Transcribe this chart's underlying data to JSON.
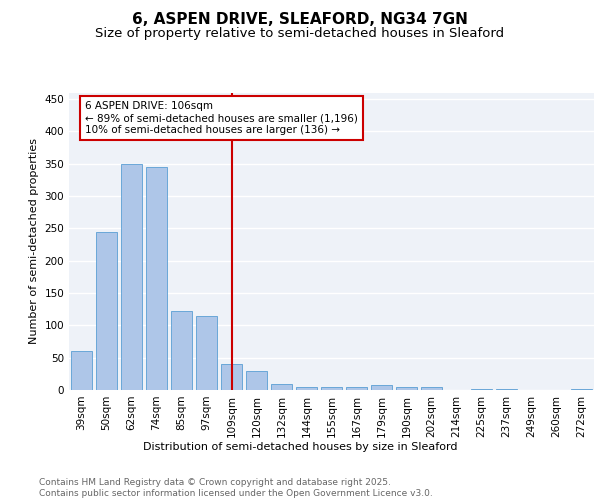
{
  "title_line1": "6, ASPEN DRIVE, SLEAFORD, NG34 7GN",
  "title_line2": "Size of property relative to semi-detached houses in Sleaford",
  "xlabel": "Distribution of semi-detached houses by size in Sleaford",
  "ylabel": "Number of semi-detached properties",
  "categories": [
    "39sqm",
    "50sqm",
    "62sqm",
    "74sqm",
    "85sqm",
    "97sqm",
    "109sqm",
    "120sqm",
    "132sqm",
    "144sqm",
    "155sqm",
    "167sqm",
    "179sqm",
    "190sqm",
    "202sqm",
    "214sqm",
    "225sqm",
    "237sqm",
    "249sqm",
    "260sqm",
    "272sqm"
  ],
  "values": [
    60,
    245,
    350,
    345,
    122,
    115,
    40,
    30,
    9,
    5,
    4,
    5,
    7,
    5,
    4,
    0,
    1,
    1,
    0,
    0,
    1
  ],
  "bar_color": "#aec6e8",
  "bar_edge_color": "#5a9fd4",
  "highlight_index": 6,
  "vline_color": "#cc0000",
  "annotation_text": "6 ASPEN DRIVE: 106sqm\n← 89% of semi-detached houses are smaller (1,196)\n10% of semi-detached houses are larger (136) →",
  "annotation_box_color": "#cc0000",
  "ylim": [
    0,
    460
  ],
  "yticks": [
    0,
    50,
    100,
    150,
    200,
    250,
    300,
    350,
    400,
    450
  ],
  "background_color": "#eef2f8",
  "grid_color": "#ffffff",
  "footer_text": "Contains HM Land Registry data © Crown copyright and database right 2025.\nContains public sector information licensed under the Open Government Licence v3.0.",
  "title_fontsize": 11,
  "subtitle_fontsize": 9.5,
  "axis_label_fontsize": 8,
  "tick_fontsize": 7.5,
  "annotation_fontsize": 7.5,
  "footer_fontsize": 6.5
}
